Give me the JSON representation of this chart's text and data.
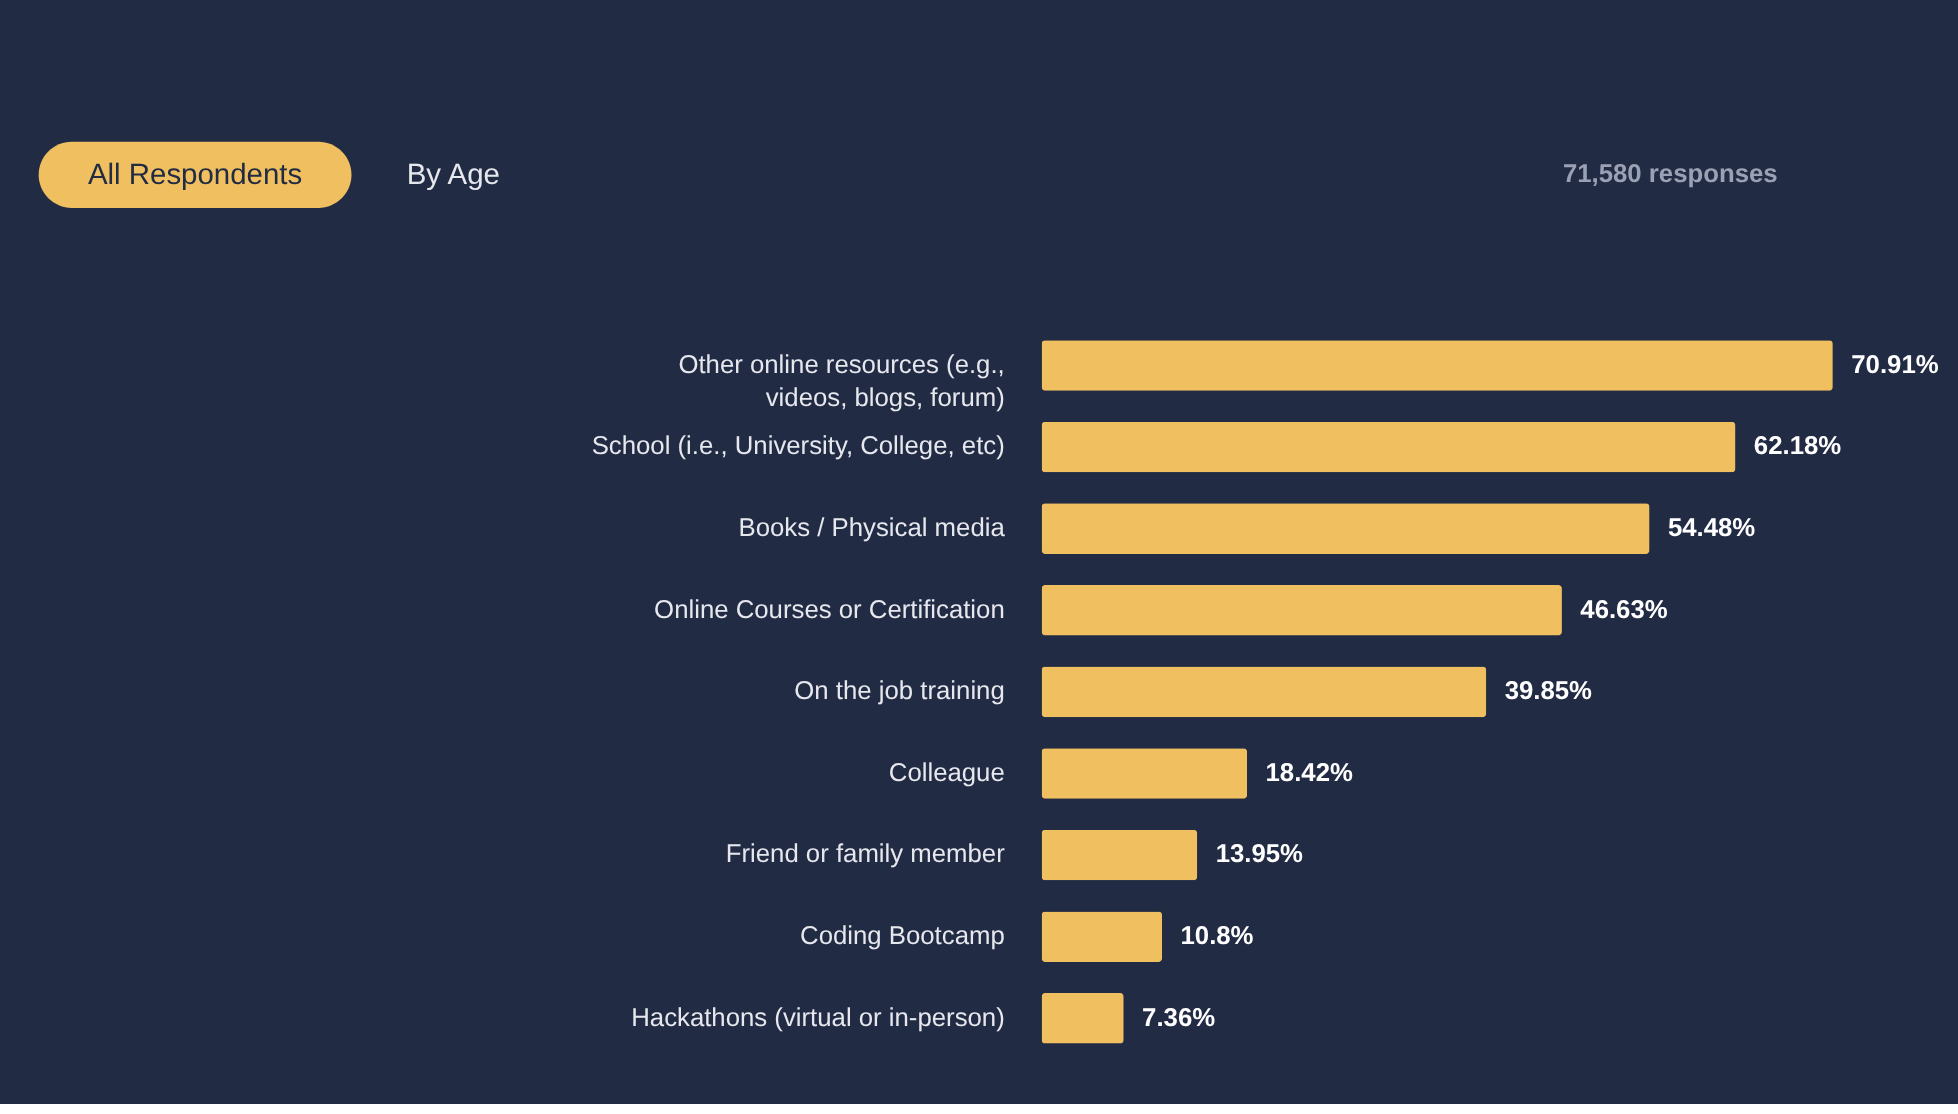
{
  "chart_data": {
    "type": "bar",
    "orientation": "horizontal",
    "color": "#f0c060",
    "value_labels": [
      "70.91%",
      "62.18%",
      "54.48%",
      "46.63%",
      "39.85%",
      "18.42%",
      "13.95%",
      "10.8%",
      "7.36%"
    ],
    "annotations": [
      "All Respondents",
      "By Age",
      "71,580 responses"
    ],
    "categories": [
      "Other online resources (e.g., videos, blogs, forum)",
      "School (i.e., University, College, etc)",
      "Books / Physical media",
      "Online Courses or Certification",
      "On the job training",
      "Colleague",
      "Friend or family member",
      "Coding Bootcamp",
      "Hackathons (virtual or in-person)"
    ],
    "values": [
      70.91,
      62.18,
      54.48,
      46.63,
      39.85,
      18.42,
      13.95,
      10.8,
      7.36
    ]
  }
}
